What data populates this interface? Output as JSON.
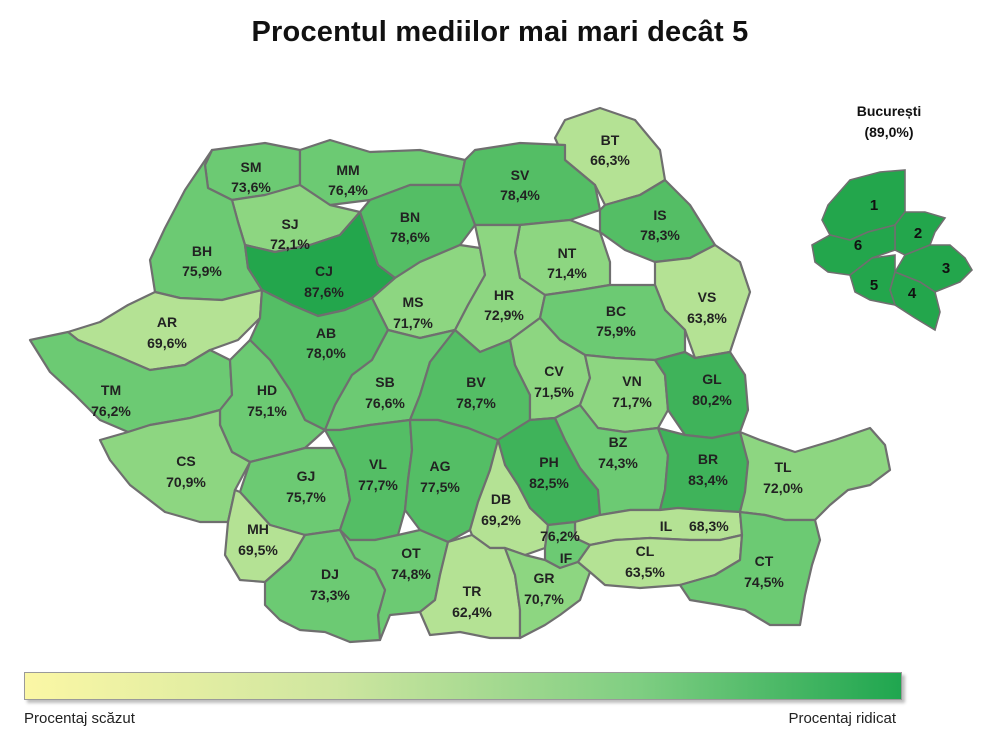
{
  "title": "Procentul mediilor mai mari decât 5",
  "counties": [
    {
      "code": "SM",
      "value": "73,6%"
    },
    {
      "code": "MM",
      "value": "76,4%"
    },
    {
      "code": "BT",
      "value": "66,3%"
    },
    {
      "code": "SV",
      "value": "78,4%"
    },
    {
      "code": "SJ",
      "value": "72,1%"
    },
    {
      "code": "BN",
      "value": "78,6%"
    },
    {
      "code": "IS",
      "value": "78,3%"
    },
    {
      "code": "BH",
      "value": "75,9%"
    },
    {
      "code": "CJ",
      "value": "87,6%"
    },
    {
      "code": "NT",
      "value": "71,4%"
    },
    {
      "code": "MS",
      "value": "71,7%"
    },
    {
      "code": "HR",
      "value": "72,9%"
    },
    {
      "code": "BC",
      "value": "75,9%"
    },
    {
      "code": "VS",
      "value": "63,8%"
    },
    {
      "code": "AR",
      "value": "69,6%"
    },
    {
      "code": "AB",
      "value": "78,0%"
    },
    {
      "code": "TM",
      "value": "76,2%"
    },
    {
      "code": "HD",
      "value": "75,1%"
    },
    {
      "code": "SB",
      "value": "76,6%"
    },
    {
      "code": "BV",
      "value": "78,7%"
    },
    {
      "code": "CV",
      "value": "71,5%"
    },
    {
      "code": "VN",
      "value": "71,7%"
    },
    {
      "code": "GL",
      "value": "80,2%"
    },
    {
      "code": "CS",
      "value": "70,9%"
    },
    {
      "code": "GJ",
      "value": "75,7%"
    },
    {
      "code": "VL",
      "value": "77,7%"
    },
    {
      "code": "AG",
      "value": "77,5%"
    },
    {
      "code": "PH",
      "value": "82,5%"
    },
    {
      "code": "BZ",
      "value": "74,3%"
    },
    {
      "code": "BR",
      "value": "83,4%"
    },
    {
      "code": "TL",
      "value": "72,0%"
    },
    {
      "code": "DB",
      "value": "69,2%"
    },
    {
      "code": "MH",
      "value": "69,5%"
    },
    {
      "code": "IL",
      "value": "68,3%"
    },
    {
      "code": "IF",
      "value": "76,2%"
    },
    {
      "code": "OT",
      "value": "74,8%"
    },
    {
      "code": "DJ",
      "value": "73,3%"
    },
    {
      "code": "TR",
      "value": "62,4%"
    },
    {
      "code": "GR",
      "value": "70,7%"
    },
    {
      "code": "CL",
      "value": "63,5%"
    },
    {
      "code": "CT",
      "value": "74,5%"
    }
  ],
  "bucuresti": {
    "name": "București",
    "value": "(89,0%)",
    "sectors": [
      "1",
      "2",
      "3",
      "4",
      "5",
      "6"
    ]
  },
  "legend": {
    "low": "Procentaj scăzut",
    "high": "Procentaj ridicat",
    "colors": {
      "low": "#fbf7a5",
      "high": "#1fa64f"
    }
  },
  "colors": {
    "c1": "#b4e294",
    "c2": "#8dd681",
    "c3": "#6cca73",
    "c4": "#54be65",
    "c5": "#3fb35a",
    "c6": "#23a64c"
  }
}
